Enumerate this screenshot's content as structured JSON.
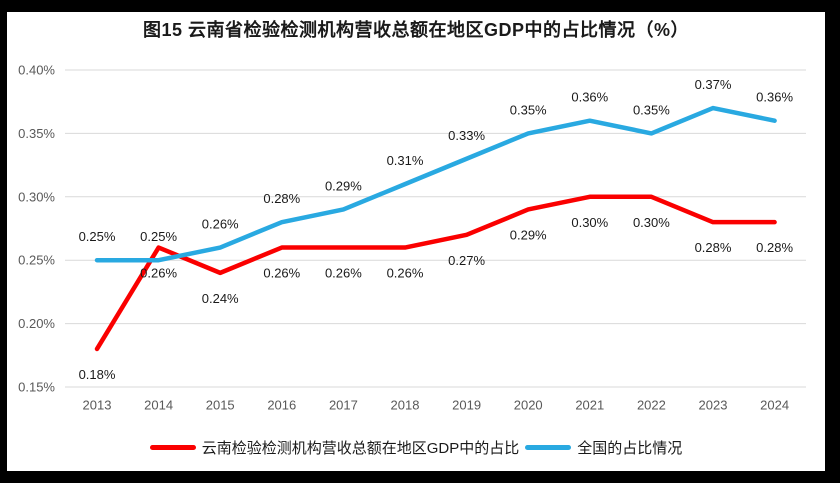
{
  "title": "图15 云南省检验检测机构营收总额在地区GDP中的占比情况（%）",
  "colors": {
    "yunnan": "#FA0000",
    "national": "#29A9E1",
    "gridline": "#D9D9D9",
    "axis_text": "#595959",
    "label_text": "#1A1A1A",
    "frame": "#000000",
    "background": "#FFFFFF"
  },
  "chart_data": {
    "type": "line",
    "title": "图15 云南省检验检测机构营收总额在地区GDP中的占比情况（%）",
    "categories": [
      "2013",
      "2014",
      "2015",
      "2016",
      "2017",
      "2018",
      "2019",
      "2020",
      "2021",
      "2022",
      "2023",
      "2024"
    ],
    "series": [
      {
        "id": "yunnan",
        "name": "云南检验检测机构营收总额在地区GDP中的占比",
        "color_key": "yunnan",
        "values": [
          0.18,
          0.26,
          0.24,
          0.26,
          0.26,
          0.26,
          0.27,
          0.29,
          0.3,
          0.3,
          0.28,
          0.28
        ],
        "labels": [
          "0.18%",
          "0.26%",
          "0.24%",
          "0.26%",
          "0.26%",
          "0.26%",
          "0.27%",
          "0.29%",
          "0.30%",
          "0.30%",
          "0.28%",
          "0.28%"
        ],
        "label_position": "below"
      },
      {
        "id": "national",
        "name": "全国的占比情况",
        "color_key": "national",
        "values": [
          0.25,
          0.25,
          0.26,
          0.28,
          0.29,
          0.31,
          0.33,
          0.35,
          0.36,
          0.35,
          0.37,
          0.36
        ],
        "labels": [
          "0.25%",
          "0.25%",
          "0.26%",
          "0.28%",
          "0.29%",
          "0.31%",
          "0.33%",
          "0.35%",
          "0.36%",
          "0.35%",
          "0.37%",
          "0.36%"
        ],
        "label_position": "above"
      }
    ],
    "xlabel": "",
    "ylabel": "",
    "y_axis": {
      "min": 0.15,
      "max": 0.4,
      "step": 0.05,
      "ticks": [
        {
          "value": 0.15,
          "label": "0.15%"
        },
        {
          "value": 0.2,
          "label": "0.20%"
        },
        {
          "value": 0.25,
          "label": "0.25%"
        },
        {
          "value": 0.3,
          "label": "0.30%"
        },
        {
          "value": 0.35,
          "label": "0.35%"
        },
        {
          "value": 0.4,
          "label": "0.40%"
        }
      ]
    },
    "grid": true,
    "legend_position": "bottom"
  }
}
